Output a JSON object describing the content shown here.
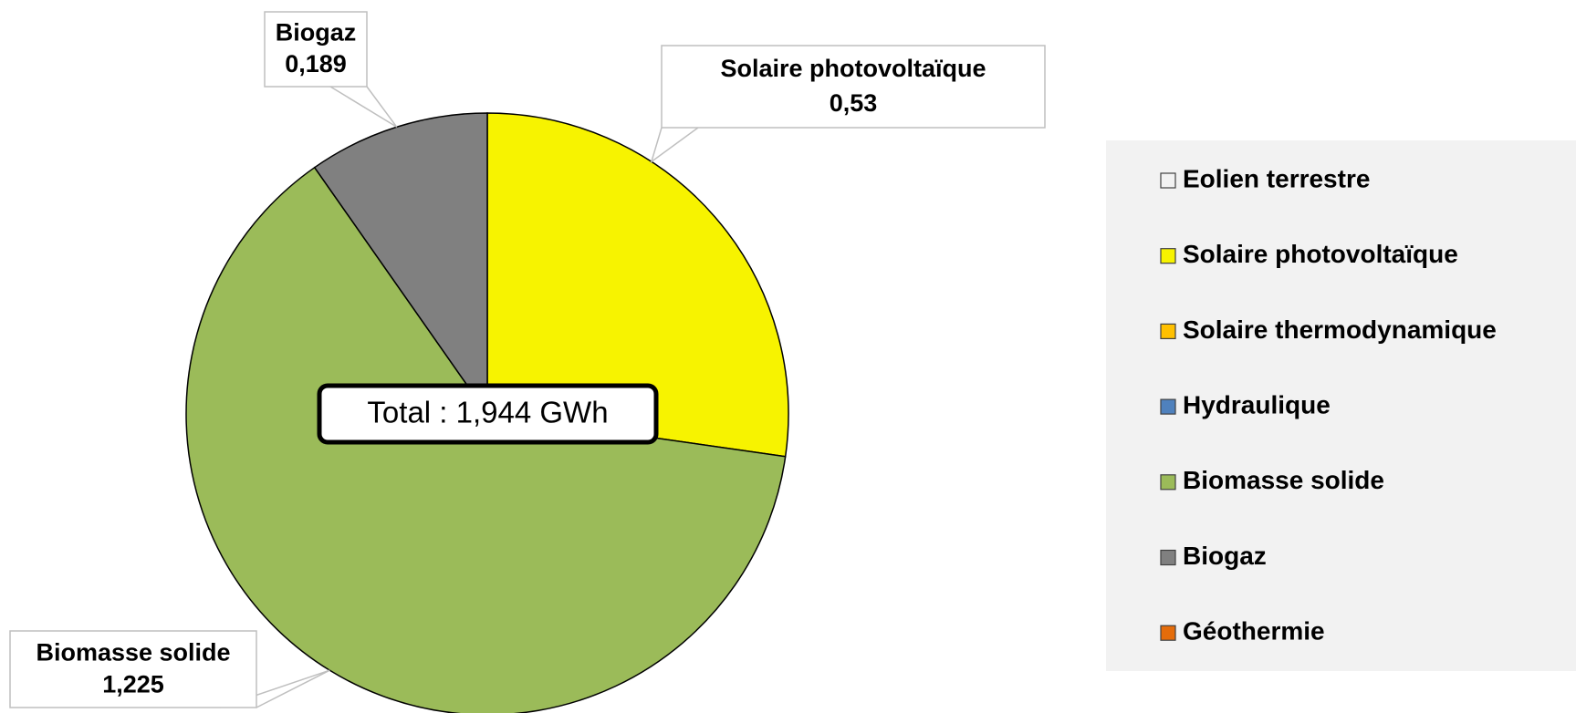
{
  "chart_data": {
    "type": "pie",
    "categories": [
      "Eolien terrestre",
      "Solaire photovoltaïque",
      "Solaire thermodynamique",
      "Hydraulique",
      "Biomasse solide",
      "Biogaz",
      "Géothermie"
    ],
    "values": [
      0,
      0.53,
      0,
      0,
      1.225,
      0.189,
      0
    ],
    "value_labels": [
      null,
      "0,53",
      null,
      null,
      "1,225",
      "0,189",
      null
    ],
    "colors": [
      "#f2f2f2",
      "#f7f300",
      "#ffc000",
      "#4f81bd",
      "#9bbb59",
      "#808080",
      "#e46c0a"
    ],
    "annotation": "Total : 1,944 GWh",
    "legend": "right"
  }
}
